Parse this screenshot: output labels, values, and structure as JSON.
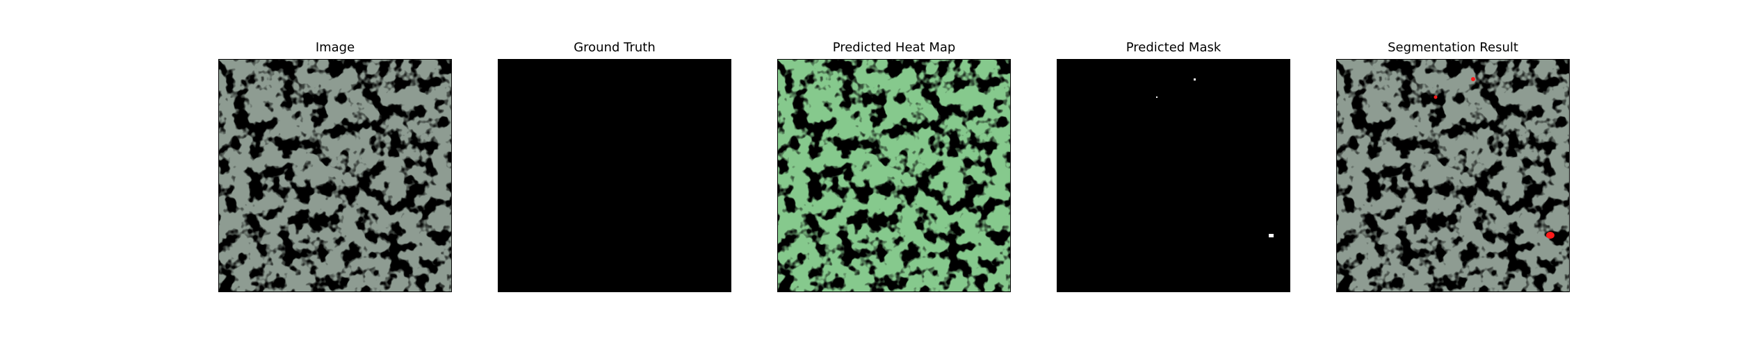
{
  "figure": {
    "panels": [
      {
        "title": "Image"
      },
      {
        "title": "Ground Truth"
      },
      {
        "title": "Predicted Heat Map"
      },
      {
        "title": "Predicted Mask"
      },
      {
        "title": "Segmentation Result"
      }
    ]
  },
  "colors": {
    "texture_light": "#8e9c92",
    "texture_dark": "#333633",
    "heatmap_light": "#86c98d",
    "heatmap_dark": "#4f7d55",
    "mask_background": "#000000",
    "mask_foreground": "#ffffff",
    "overlay_highlight": "#ff1a1a"
  }
}
